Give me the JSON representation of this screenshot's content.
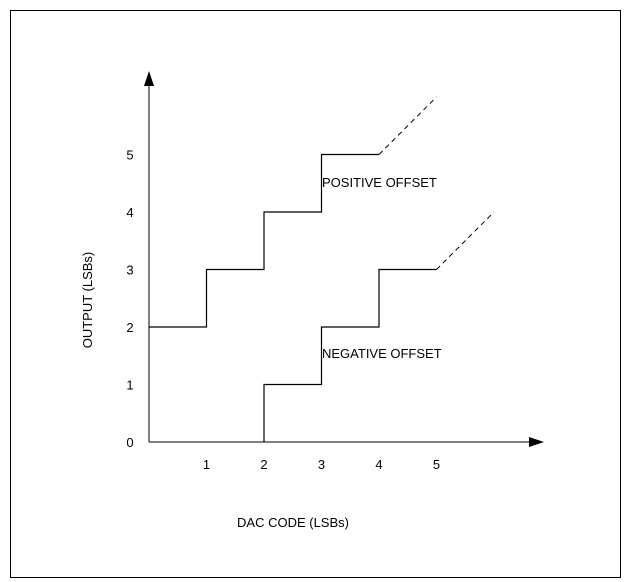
{
  "chart_data": {
    "type": "line",
    "xlabel": "DAC CODE (LSBs)",
    "ylabel": "OUTPUT (LSBs)",
    "x_ticks": [
      1,
      2,
      3,
      4,
      5
    ],
    "y_ticks": [
      0,
      1,
      2,
      3,
      4,
      5
    ],
    "series": [
      {
        "name": "POSITIVE OFFSET",
        "x": [
          0,
          1,
          1,
          2,
          2,
          3,
          3,
          4
        ],
        "y": [
          2,
          2,
          3,
          3,
          4,
          4,
          5,
          5
        ],
        "dashed_extension": {
          "x": [
            4,
            5
          ],
          "y": [
            5,
            6
          ]
        }
      },
      {
        "name": "NEGATIVE OFFSET",
        "x": [
          2,
          2,
          3,
          3,
          4,
          4,
          5
        ],
        "y": [
          0,
          1,
          1,
          2,
          2,
          3,
          3
        ],
        "dashed_extension": {
          "x": [
            5,
            6
          ],
          "y": [
            3,
            4
          ]
        }
      }
    ],
    "colors": {
      "line": "#000000"
    }
  }
}
